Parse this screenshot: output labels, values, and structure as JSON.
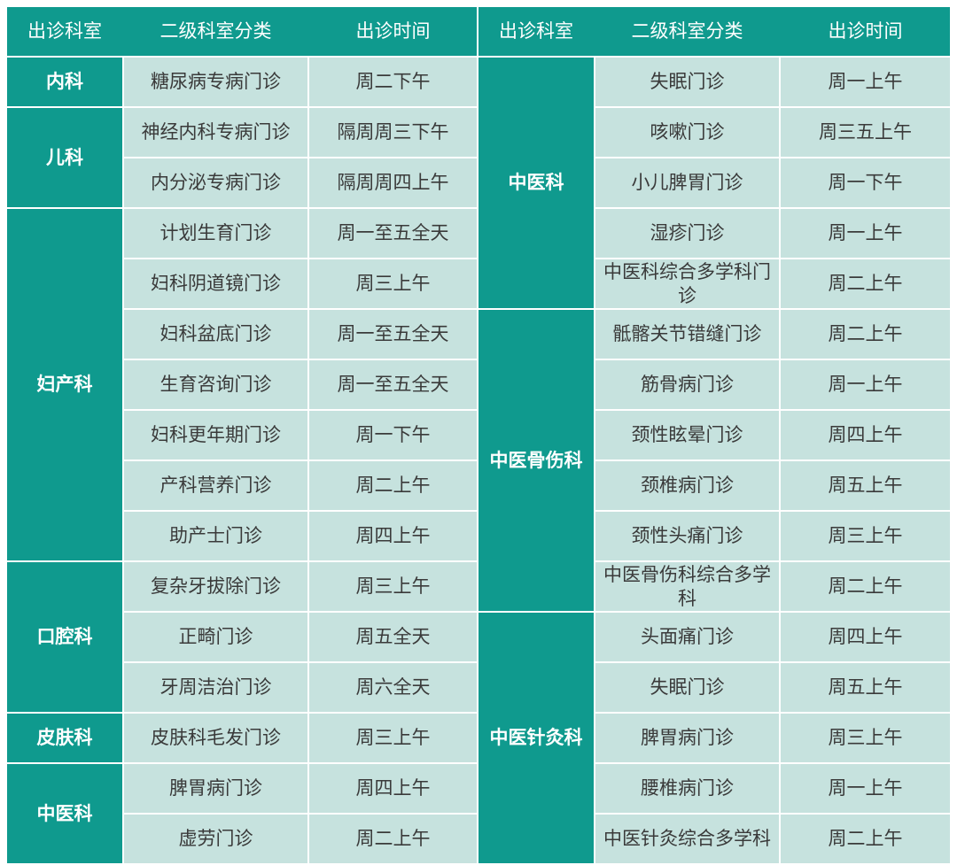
{
  "headers": [
    "出诊科室",
    "二级科室分类",
    "出诊时间"
  ],
  "colors": {
    "teal": "#0f9a8e",
    "light": "#c6e2de",
    "text": "#3a3a3a"
  },
  "left": [
    {
      "dept": "内科",
      "clinics": [
        {
          "name": "糖尿病专病门诊",
          "time": "周二下午"
        }
      ]
    },
    {
      "dept": "儿科",
      "clinics": [
        {
          "name": "神经内科专病门诊",
          "time": "隔周周三下午"
        },
        {
          "name": "内分泌专病门诊",
          "time": "隔周周四上午"
        }
      ]
    },
    {
      "dept": "妇产科",
      "clinics": [
        {
          "name": "计划生育门诊",
          "time": "周一至五全天"
        },
        {
          "name": "妇科阴道镜门诊",
          "time": "周三上午"
        },
        {
          "name": "妇科盆底门诊",
          "time": "周一至五全天"
        },
        {
          "name": "生育咨询门诊",
          "time": "周一至五全天"
        },
        {
          "name": "妇科更年期门诊",
          "time": "周一下午"
        },
        {
          "name": "产科营养门诊",
          "time": "周二上午"
        },
        {
          "name": "助产士门诊",
          "time": "周四上午"
        }
      ]
    },
    {
      "dept": "口腔科",
      "clinics": [
        {
          "name": "复杂牙拔除门诊",
          "time": "周三上午"
        },
        {
          "name": "正畸门诊",
          "time": "周五全天"
        },
        {
          "name": "牙周洁治门诊",
          "time": "周六全天"
        }
      ]
    },
    {
      "dept": "皮肤科",
      "clinics": [
        {
          "name": "皮肤科毛发门诊",
          "time": "周三上午"
        }
      ]
    },
    {
      "dept": "中医科",
      "clinics": [
        {
          "name": "脾胃病门诊",
          "time": "周四上午"
        },
        {
          "name": "虚劳门诊",
          "time": "周二上午"
        }
      ]
    }
  ],
  "right": [
    {
      "dept": "中医科",
      "clinics": [
        {
          "name": "失眠门诊",
          "time": "周一上午"
        },
        {
          "name": "咳嗽门诊",
          "time": "周三五上午"
        },
        {
          "name": "小儿脾胃门诊",
          "time": "周一下午"
        },
        {
          "name": "湿疹门诊",
          "time": "周一上午"
        },
        {
          "name": "中医科综合多学科门诊",
          "time": "周二上午"
        }
      ]
    },
    {
      "dept": "中医骨伤科",
      "clinics": [
        {
          "name": "骶髂关节错缝门诊",
          "time": "周二上午"
        },
        {
          "name": "筋骨病门诊",
          "time": "周一上午"
        },
        {
          "name": "颈性眩晕门诊",
          "time": "周四上午"
        },
        {
          "name": "颈椎病门诊",
          "time": "周五上午"
        },
        {
          "name": "颈性头痛门诊",
          "time": "周三上午"
        },
        {
          "name": "中医骨伤科综合多学科",
          "time": "周二上午"
        }
      ]
    },
    {
      "dept": "中医针灸科",
      "clinics": [
        {
          "name": "头面痛门诊",
          "time": "周四上午"
        },
        {
          "name": "失眠门诊",
          "time": "周五上午"
        },
        {
          "name": "脾胃病门诊",
          "time": "周三上午"
        },
        {
          "name": "腰椎病门诊",
          "time": "周一上午"
        },
        {
          "name": "中医针灸综合多学科",
          "time": "周二上午"
        }
      ]
    }
  ]
}
